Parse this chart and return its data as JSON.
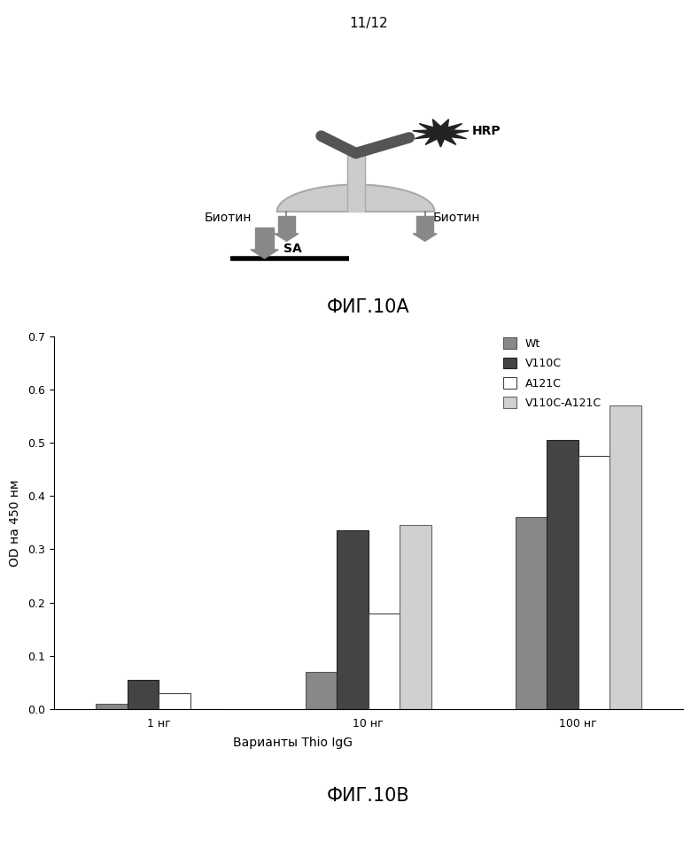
{
  "page_label": "11/12",
  "fig10a_label": "ФИГ.10A",
  "fig10b_label": "ФИГ.10B",
  "biotin_label": "Биотин",
  "sa_label": "SA",
  "hrp_label": "HRP",
  "bar_groups": [
    "1 нг",
    "10 нг",
    "100 нг"
  ],
  "series": [
    "Wt",
    "V110C",
    "A121C",
    "V110C-A121C"
  ],
  "values": {
    "1 нг": [
      0.01,
      0.055,
      0.03,
      0.0
    ],
    "10 нг": [
      0.07,
      0.335,
      0.18,
      0.345
    ],
    "100 нг": [
      0.36,
      0.505,
      0.475,
      0.57
    ]
  },
  "bar_colors": [
    "#888888",
    "#444444",
    "#ffffff",
    "#d0d0d0"
  ],
  "bar_edgecolors": [
    "#555555",
    "#222222",
    "#444444",
    "#666666"
  ],
  "ylim": [
    0,
    0.7
  ],
  "yticks": [
    0.0,
    0.1,
    0.2,
    0.3,
    0.4,
    0.5,
    0.6,
    0.7
  ],
  "ylabel": "OD на 450 нм",
  "xlabel": "Варианты Thio IgG",
  "background_color": "#ffffff",
  "axis_fontsize": 10,
  "legend_fontsize": 9,
  "tick_fontsize": 9,
  "diag_color_antibody": "#cccccc",
  "diag_color_biotin": "#888888",
  "diag_color_dark": "#555555",
  "diag_color_hrp": "#222222"
}
